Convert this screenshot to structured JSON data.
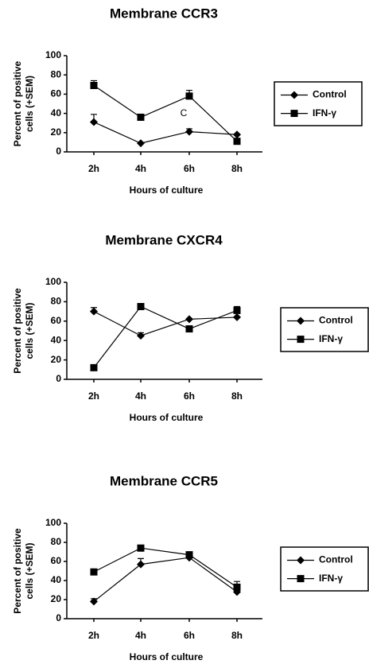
{
  "chart_data": [
    {
      "type": "line",
      "title": "Membrane CCR3",
      "ylabel": [
        "Percent of positive",
        "cells (+SEM)"
      ],
      "xlabel": "Hours of culture",
      "categories": [
        "2h",
        "4h",
        "6h",
        "8h"
      ],
      "ylim": [
        0,
        100
      ],
      "yticks": [
        0,
        20,
        40,
        60,
        80,
        100
      ],
      "annotation": "C",
      "series": [
        {
          "name": "Control",
          "color": "#000000",
          "marker": "diamond",
          "values": [
            31,
            9,
            21,
            18
          ],
          "errors": [
            8,
            null,
            3,
            null
          ]
        },
        {
          "name": "IFN-γ",
          "color": "#000000",
          "marker": "square",
          "values": [
            69,
            36,
            58,
            11
          ],
          "errors": [
            5,
            null,
            6,
            null
          ]
        }
      ]
    },
    {
      "type": "line",
      "title": "Membrane CXCR4",
      "ylabel": [
        "Percent of positive",
        "cells (+SEM)"
      ],
      "xlabel": "Hours of culture",
      "categories": [
        "2h",
        "4h",
        "6h",
        "8h"
      ],
      "ylim": [
        0,
        100
      ],
      "yticks": [
        0,
        20,
        40,
        60,
        80,
        100
      ],
      "series": [
        {
          "name": "Control",
          "color": "#000000",
          "marker": "diamond",
          "values": [
            70,
            45,
            62,
            64
          ],
          "errors": [
            4,
            3,
            null,
            null
          ]
        },
        {
          "name": "IFN-γ",
          "color": "#000000",
          "marker": "square",
          "values": [
            12,
            75,
            52,
            71
          ],
          "errors": [
            null,
            2,
            null,
            4
          ]
        }
      ]
    },
    {
      "type": "line",
      "title": "Membrane CCR5",
      "ylabel": [
        "Percent of positive",
        "cells (+SEM)"
      ],
      "xlabel": "Hours of culture",
      "categories": [
        "2h",
        "4h",
        "6h",
        "8h"
      ],
      "ylim": [
        0,
        100
      ],
      "yticks": [
        0,
        20,
        40,
        60,
        80,
        100
      ],
      "series": [
        {
          "name": "Control",
          "color": "#000000",
          "marker": "diamond",
          "values": [
            18,
            57,
            64,
            28
          ],
          "errors": [
            3,
            6,
            null,
            null
          ]
        },
        {
          "name": "IFN-γ",
          "color": "#000000",
          "marker": "square",
          "values": [
            49,
            74,
            67,
            33
          ],
          "errors": [
            null,
            null,
            2,
            6
          ]
        }
      ]
    }
  ]
}
